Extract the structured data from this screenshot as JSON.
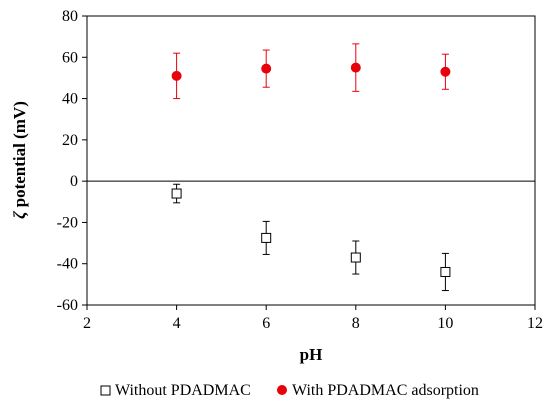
{
  "chart_data": {
    "type": "scatter",
    "xlabel": "pH",
    "ylabel_symbol": "ζ",
    "ylabel": "potential (mV)",
    "xlim": [
      2,
      12
    ],
    "ylim": [
      -60,
      80
    ],
    "xticks": [
      2,
      4,
      6,
      8,
      10,
      12
    ],
    "yticks": [
      -60,
      -40,
      -20,
      0,
      20,
      40,
      60,
      80
    ],
    "zero_line": true,
    "grid": false,
    "legend_position": "bottom",
    "series": [
      {
        "name": "Without PDADMAC",
        "marker": "open-square",
        "color": "#000000",
        "x": [
          4,
          6,
          8,
          10
        ],
        "y": [
          -6,
          -27.5,
          -37,
          -44
        ],
        "err": [
          4.5,
          8,
          8,
          9
        ]
      },
      {
        "name": "With PDADMAC adsorption",
        "marker": "filled-circle",
        "color": "#e8000b",
        "x": [
          4,
          6,
          8,
          10
        ],
        "y": [
          51,
          54.5,
          55,
          53
        ],
        "err": [
          11,
          9,
          11.5,
          8.5
        ]
      }
    ]
  }
}
